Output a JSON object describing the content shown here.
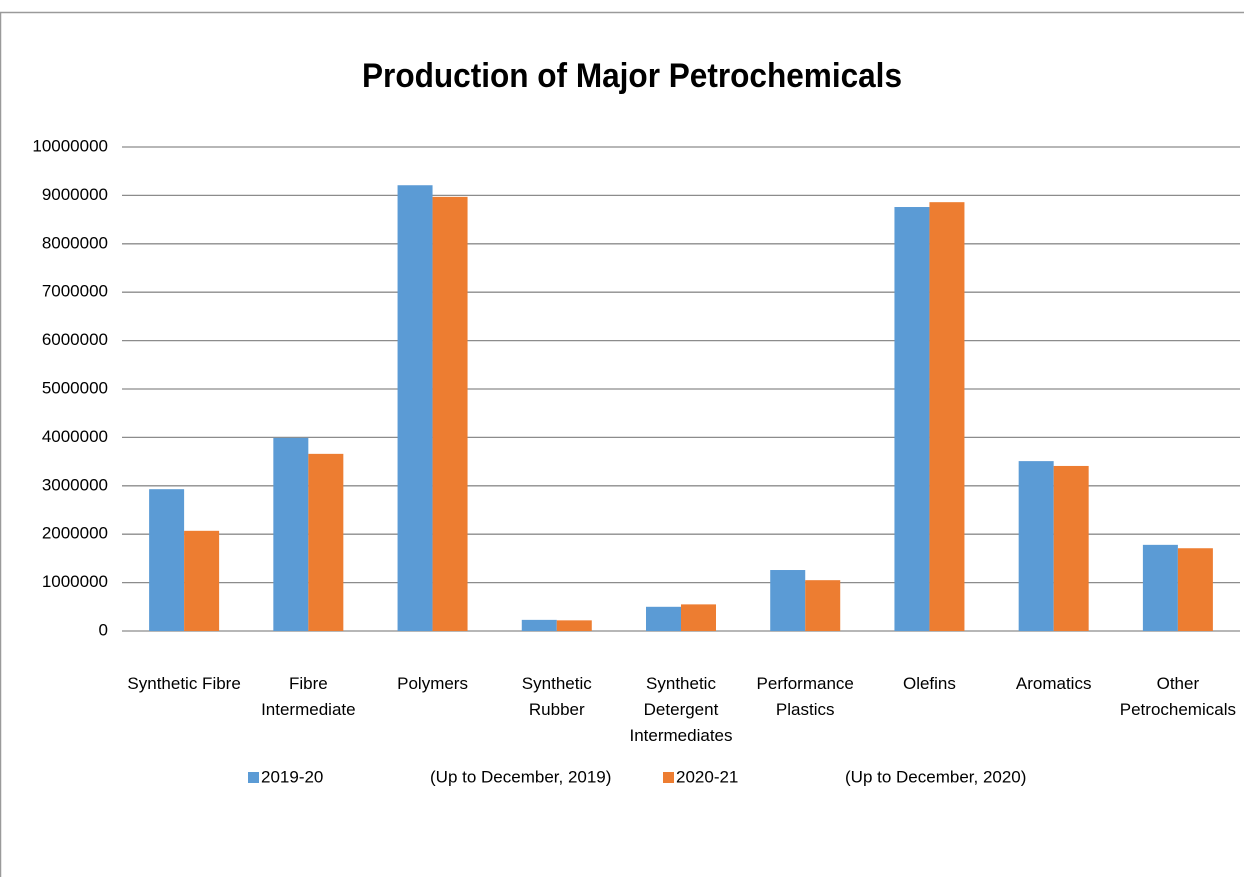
{
  "chart_data": {
    "type": "bar",
    "title": "Production of Major Petrochemicals",
    "categories": [
      "Synthetic Fibre",
      "Fibre Intermediate",
      "Polymers",
      "Synthetic Rubber",
      "Synthetic Detergent Intermediates",
      "Performance Plastics",
      "Olefins",
      "Aromatics",
      "Other Petrochemicals"
    ],
    "series": [
      {
        "name": "2019-20",
        "period": "(Up to December, 2019)",
        "color": "#5b9bd5",
        "values": [
          2930000,
          3990000,
          9210000,
          230000,
          500000,
          1260000,
          8760000,
          3510000,
          1780000
        ]
      },
      {
        "name": "2020-21",
        "period": "(Up to December, 2020)",
        "color": "#ed7d31",
        "values": [
          2070000,
          3660000,
          8970000,
          220000,
          550000,
          1050000,
          8860000,
          3410000,
          1710000
        ]
      }
    ],
    "ylim": [
      0,
      10000000
    ],
    "yticks": [
      0,
      1000000,
      2000000,
      3000000,
      4000000,
      5000000,
      6000000,
      7000000,
      8000000,
      9000000,
      10000000
    ],
    "grid": true,
    "legend": "bottom"
  }
}
